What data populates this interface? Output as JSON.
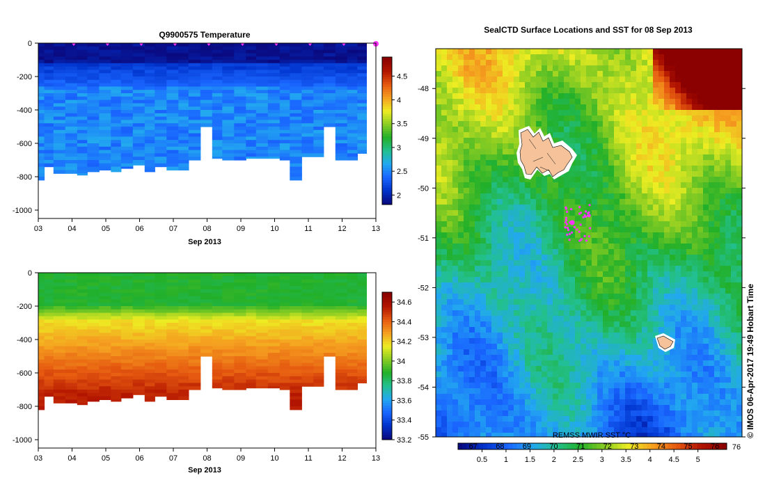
{
  "chart_data": [
    {
      "type": "heatmap",
      "title": "Q9900575  Temperature",
      "xlabel": "Sep 2013",
      "xticks": [
        "03",
        "04",
        "05",
        "06",
        "07",
        "08",
        "09",
        "10",
        "11",
        "12",
        "13"
      ],
      "xlim": [
        3,
        13
      ],
      "ylim": [
        -1050,
        0
      ],
      "yticks": [
        0,
        -200,
        -400,
        -600,
        -800,
        -1000
      ],
      "colorbar": {
        "ticks": [
          2,
          2.5,
          3,
          3.5,
          4,
          4.5
        ],
        "range": [
          1.8,
          4.9
        ]
      },
      "marker_color": "#ff33ff",
      "profiles": {
        "day": [
          3.05,
          3.3,
          3.6,
          4.0,
          4.3,
          4.6,
          5.0,
          5.3,
          5.6,
          6.0,
          6.3,
          6.6,
          7.0,
          7.3,
          7.6,
          8.0,
          8.3,
          8.6,
          9.0,
          9.3,
          9.6,
          10.0,
          10.3,
          10.6,
          11.0,
          11.3,
          11.6,
          12.0,
          12.3,
          12.6
        ],
        "max_depth": [
          -820,
          -740,
          -780,
          -780,
          -790,
          -770,
          -760,
          -770,
          -750,
          -730,
          -770,
          -740,
          -760,
          -760,
          -700,
          -500,
          -690,
          -700,
          -700,
          -690,
          -690,
          -690,
          -700,
          -820,
          -680,
          -680,
          -500,
          -700,
          -700,
          -660
        ]
      }
    },
    {
      "type": "heatmap",
      "title": "",
      "xlabel": "Sep 2013",
      "xticks": [
        "03",
        "04",
        "05",
        "06",
        "07",
        "08",
        "09",
        "10",
        "11",
        "12",
        "13"
      ],
      "xlim": [
        3,
        13
      ],
      "ylim": [
        -1050,
        0
      ],
      "yticks": [
        0,
        -200,
        -400,
        -600,
        -800,
        -1000
      ],
      "colorbar": {
        "ticks": [
          33.2,
          33.4,
          33.6,
          33.8,
          34,
          34.2,
          34.4,
          34.6
        ],
        "range": [
          33.2,
          34.7
        ]
      }
    },
    {
      "type": "heatmap",
      "title": "SealCTD Surface Locations and SST for 08 Sep 2013",
      "yticks": [
        -48,
        -49,
        -50,
        -51,
        -52,
        -53,
        -54,
        -55
      ],
      "ylim": [
        -55,
        -47.2
      ],
      "colorbar": {
        "label": "REMSS MWIR SST °C",
        "ticks": [
          0.5,
          1,
          1.5,
          2,
          2.5,
          3,
          3.5,
          4,
          4.5,
          5
        ],
        "range": [
          0,
          5.6
        ],
        "upper_ticks": [
          "67",
          "68",
          "69",
          "70",
          "71",
          "72",
          "73",
          "74",
          "75",
          "76"
        ]
      },
      "track_color": "#ff33ff",
      "land_color": "#f5c29a"
    }
  ],
  "credit": "© IMOS 06-Apr-2017 19:49 Hobart Time"
}
